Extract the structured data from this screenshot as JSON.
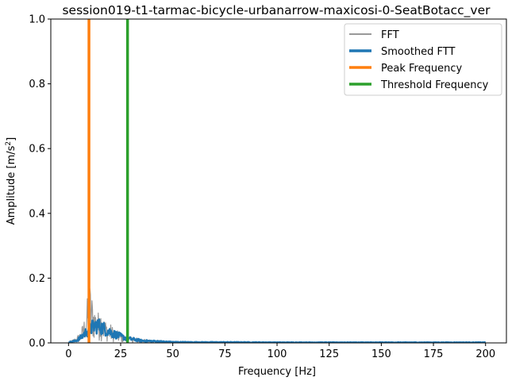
{
  "chart_data": {
    "type": "line",
    "title": "session019-t1-tarmac-bicycle-urbanarrow-maxicosi-0-SeatBotacc_ver",
    "xlabel": "Frequency [Hz]",
    "ylabel_main": "Amplitude [m/s",
    "ylabel_sup": "2",
    "ylabel_end": "]",
    "xlim": [
      -8.5,
      210
    ],
    "ylim": [
      0,
      1.0
    ],
    "xticks": [
      0,
      25,
      50,
      75,
      100,
      125,
      150,
      175,
      200
    ],
    "yticks": [
      0.0,
      0.2,
      0.4,
      0.6,
      0.8,
      1.0
    ],
    "xtick_labels": [
      "0",
      "25",
      "50",
      "75",
      "100",
      "125",
      "150",
      "175",
      "200"
    ],
    "ytick_labels": [
      "0.0",
      "0.2",
      "0.4",
      "0.6",
      "0.8",
      "1.0"
    ],
    "legend_position": "top-right",
    "series": [
      {
        "name": "FFT",
        "color": "#999999",
        "kind": "noisy",
        "envelope": [
          [
            0,
            0.005
          ],
          [
            2,
            0.01
          ],
          [
            4,
            0.02
          ],
          [
            6,
            0.04
          ],
          [
            8,
            0.09
          ],
          [
            9,
            0.14
          ],
          [
            10,
            0.2
          ],
          [
            11,
            0.16
          ],
          [
            12,
            0.13
          ],
          [
            13,
            0.11
          ],
          [
            14,
            0.09
          ],
          [
            15,
            0.12
          ],
          [
            16,
            0.1
          ],
          [
            17,
            0.08
          ],
          [
            18,
            0.07
          ],
          [
            20,
            0.06
          ],
          [
            22,
            0.045
          ],
          [
            25,
            0.03
          ],
          [
            28,
            0.02
          ],
          [
            32,
            0.018
          ],
          [
            35,
            0.012
          ],
          [
            40,
            0.01
          ],
          [
            45,
            0.007
          ],
          [
            50,
            0.005
          ],
          [
            60,
            0.004
          ],
          [
            80,
            0.003
          ],
          [
            100,
            0.003
          ],
          [
            150,
            0.002
          ],
          [
            200,
            0.002
          ]
        ]
      },
      {
        "name": "Smoothed FTT",
        "color": "#1f77b4",
        "kind": "band",
        "envelope": [
          [
            0,
            0.003
          ],
          [
            2,
            0.006
          ],
          [
            4,
            0.012
          ],
          [
            6,
            0.025
          ],
          [
            8,
            0.045
          ],
          [
            10,
            0.06
          ],
          [
            12,
            0.075
          ],
          [
            14,
            0.08
          ],
          [
            16,
            0.07
          ],
          [
            18,
            0.06
          ],
          [
            20,
            0.05
          ],
          [
            22,
            0.04
          ],
          [
            25,
            0.03
          ],
          [
            28,
            0.02
          ],
          [
            32,
            0.015
          ],
          [
            35,
            0.01
          ],
          [
            40,
            0.008
          ],
          [
            45,
            0.006
          ],
          [
            50,
            0.004
          ],
          [
            60,
            0.003
          ],
          [
            80,
            0.003
          ],
          [
            100,
            0.002
          ],
          [
            150,
            0.002
          ],
          [
            200,
            0.002
          ]
        ]
      },
      {
        "name": "Peak Frequency",
        "color": "#ff7f0e",
        "kind": "vline",
        "x": 9.8
      },
      {
        "name": "Threshold Frequency",
        "color": "#2ca02c",
        "kind": "vline",
        "x": 28.3
      }
    ]
  }
}
